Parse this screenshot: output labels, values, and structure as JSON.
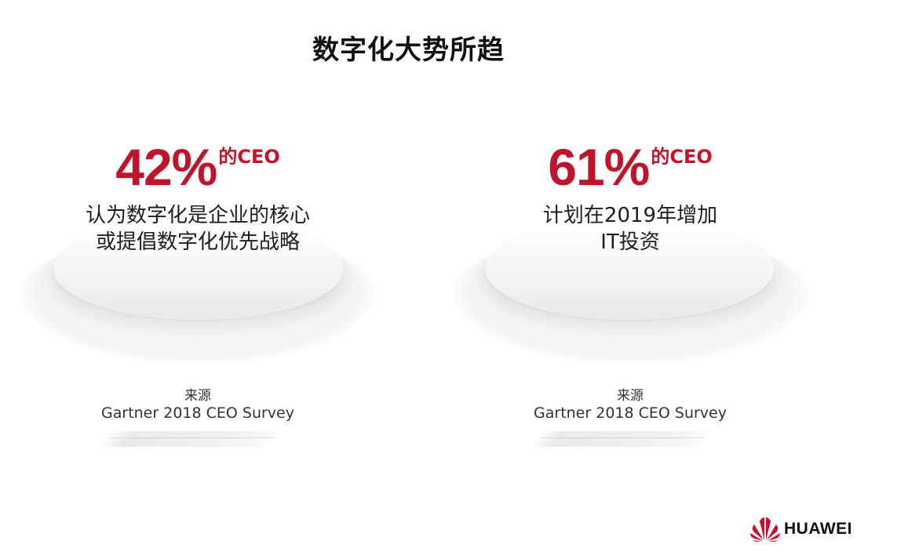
{
  "slide": {
    "title": "数字化大势所趋"
  },
  "stats": [
    {
      "percent": "42%",
      "suffix": "的CEO",
      "description_lines": [
        "认为数字化是企业的核心",
        "或提倡数字化优先战略"
      ],
      "source_label": "来源",
      "source": "Gartner 2018 CEO Survey"
    },
    {
      "percent": "61%",
      "suffix": "的CEO",
      "description_lines": [
        "计划在2019年增加",
        "IT投资"
      ],
      "source_label": "来源",
      "source": "Gartner 2018 CEO Survey"
    }
  ],
  "logo": {
    "text": "HUAWEI",
    "icon": "huawei-petal-icon"
  },
  "colors": {
    "accent": "#c0142b",
    "text": "#1e1e1e",
    "logo_red": "#cf0a2c"
  }
}
